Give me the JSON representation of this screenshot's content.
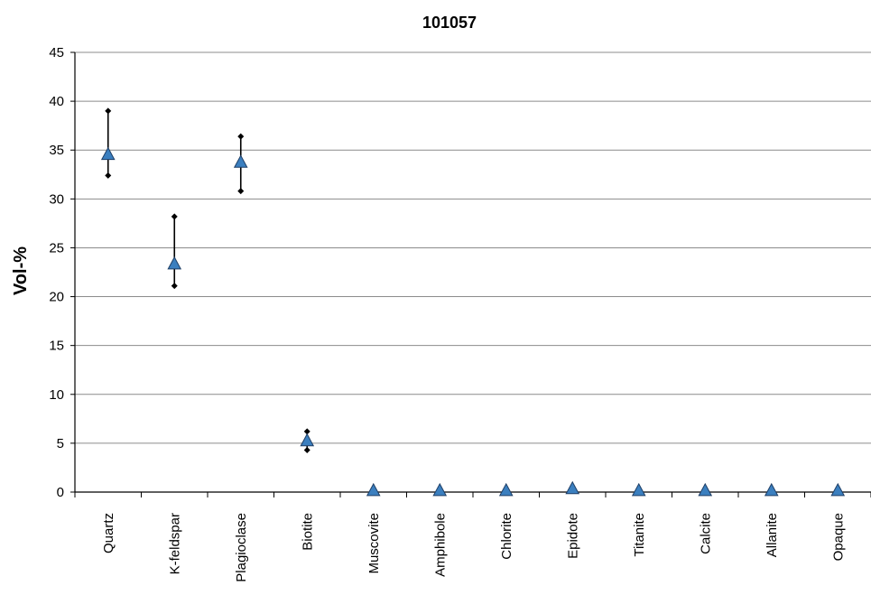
{
  "chart_data": {
    "type": "scatter",
    "title": "101057",
    "xlabel": "",
    "ylabel": "Vol-%",
    "ylim": [
      0,
      45
    ],
    "ytick_step": 5,
    "grid": true,
    "legend": "none",
    "categories": [
      "Quartz",
      "K-feldspar",
      "Plagioclase",
      "Biotite",
      "Muscovite",
      "Amphibole",
      "Chlorite",
      "Epidote",
      "Titanite",
      "Calcite",
      "Allanite",
      "Opaque"
    ],
    "series": [
      {
        "values": [
          34.5,
          23.3,
          33.7,
          5.2,
          0.1,
          0.1,
          0.1,
          0.3,
          0.1,
          0.1,
          0.1,
          0.1
        ],
        "max": [
          39.0,
          28.2,
          36.4,
          6.2,
          0.1,
          0.1,
          0.1,
          0.3,
          0.1,
          0.1,
          0.1,
          0.1
        ],
        "min": [
          32.4,
          21.1,
          30.8,
          4.3,
          0.1,
          0.1,
          0.1,
          0.3,
          0.1,
          0.1,
          0.1,
          0.1
        ]
      }
    ],
    "colors": {
      "marker": "#3b7fbf",
      "marker_edge": "#1f3f66",
      "whisker": "#000000",
      "grid": "#8c8c8c"
    }
  }
}
